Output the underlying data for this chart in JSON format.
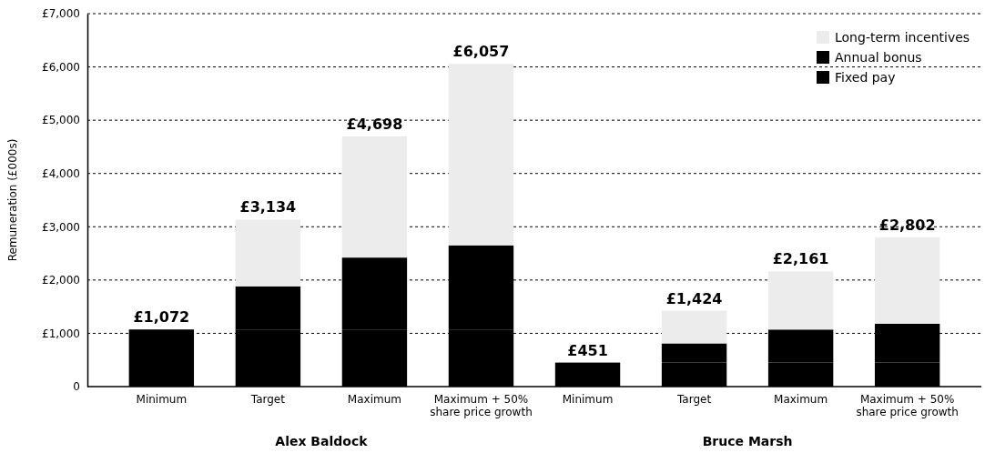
{
  "chart_data": {
    "type": "bar",
    "stacked": true,
    "categories": [
      "Minimum",
      "Target",
      "Maximum",
      "Maximum + 50%\nshare price growth",
      "Minimum",
      "Target",
      "Maximum",
      "Maximum + 50%\nshare price growth"
    ],
    "series": [
      {
        "name": "Fixed pay",
        "color": "#000000",
        "values": [
          1072,
          1072,
          1072,
          1072,
          451,
          451,
          451,
          451
        ]
      },
      {
        "name": "Annual bonus",
        "color": "#000000",
        "values": [
          0,
          810,
          1350,
          1580,
          0,
          360,
          620,
          730
        ]
      },
      {
        "name": "Long-term incentives",
        "color": "#ececec",
        "values": [
          0,
          1252,
          2276,
          3405,
          0,
          613,
          1090,
          1621
        ]
      }
    ],
    "totals": [
      "£1,072",
      "£3,134",
      "£4,698",
      "£6,057",
      "£451",
      "£1,424",
      "£2,161",
      "£2,802"
    ],
    "ylabel": "Remuneration (£000s)",
    "ylim": [
      0,
      7000
    ],
    "yticks": [
      {
        "value": 0,
        "label": "0"
      },
      {
        "value": 1000,
        "label": "£1,000"
      },
      {
        "value": 2000,
        "label": "£2,000"
      },
      {
        "value": 3000,
        "label": "£3,000"
      },
      {
        "value": 4000,
        "label": "£4,000"
      },
      {
        "value": 5000,
        "label": "£5,000"
      },
      {
        "value": 6000,
        "label": "£6,000"
      },
      {
        "value": 7000,
        "label": "£7,000"
      }
    ],
    "grid": "y",
    "legend": "top right",
    "annotations": [
      "Alex Baldock",
      "Bruce Marsh"
    ]
  }
}
